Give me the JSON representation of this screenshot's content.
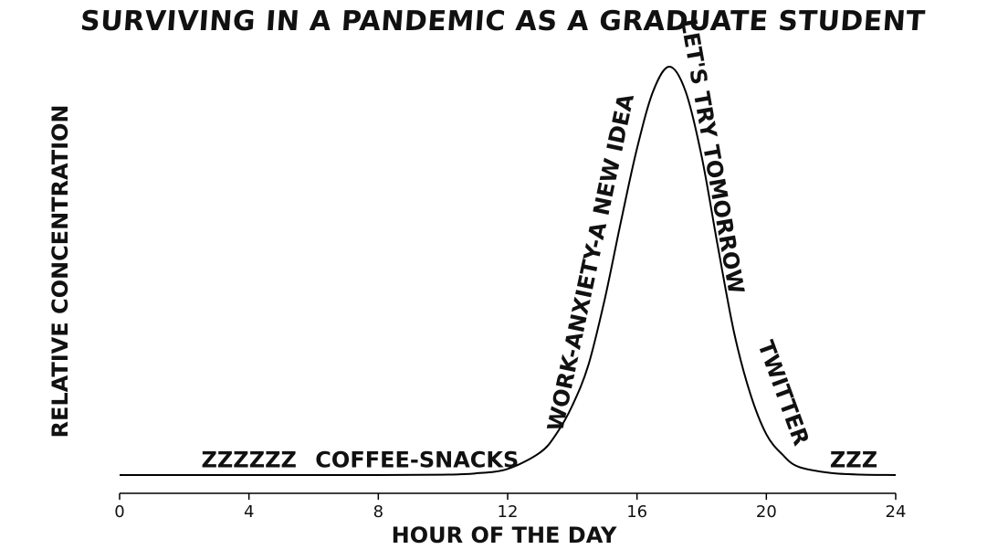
{
  "chart_data": {
    "type": "line",
    "title": "SURVIVING IN A PANDEMIC AS A GRADUATE STUDENT",
    "xlabel": "HOUR OF THE DAY",
    "ylabel": "RELATIVE CONCENTRATION",
    "xlim": [
      0,
      24
    ],
    "ylim": [
      0,
      1
    ],
    "xticks": [
      0,
      4,
      8,
      12,
      16,
      20,
      24
    ],
    "grid": false,
    "y_ticks_shown": false,
    "line_color": "#000000",
    "series": [
      {
        "x": [
          0,
          2,
          4,
          6,
          8,
          10,
          11,
          12,
          13,
          13.5,
          14,
          14.5,
          15,
          15.5,
          16,
          16.5,
          17,
          17.5,
          18,
          18.5,
          19,
          19.5,
          20,
          20.5,
          21,
          22,
          23,
          24
        ],
        "y": [
          0,
          0,
          0,
          0,
          0,
          0.001,
          0.004,
          0.015,
          0.055,
          0.1,
          0.17,
          0.27,
          0.43,
          0.62,
          0.8,
          0.94,
          1.0,
          0.94,
          0.78,
          0.56,
          0.35,
          0.2,
          0.1,
          0.05,
          0.02,
          0.005,
          0.001,
          0
        ]
      }
    ],
    "annotations": [
      {
        "text": "ZZZZZZ",
        "x": 4,
        "y": 0.035,
        "rotation": 0
      },
      {
        "text": "COFFEE-SNACKS",
        "x": 9.2,
        "y": 0.035,
        "rotation": 0
      },
      {
        "text": "WORK-ANXIETY-A NEW IDEA",
        "x": 14.6,
        "y": 0.52,
        "rotation": -78
      },
      {
        "text": "LET'S TRY TOMORROW",
        "x": 18.3,
        "y": 0.78,
        "rotation": 80
      },
      {
        "text": "TWITTER",
        "x": 20.5,
        "y": 0.2,
        "rotation": 70
      },
      {
        "text": "ZZZ",
        "x": 22.7,
        "y": 0.035,
        "rotation": 0
      }
    ]
  }
}
